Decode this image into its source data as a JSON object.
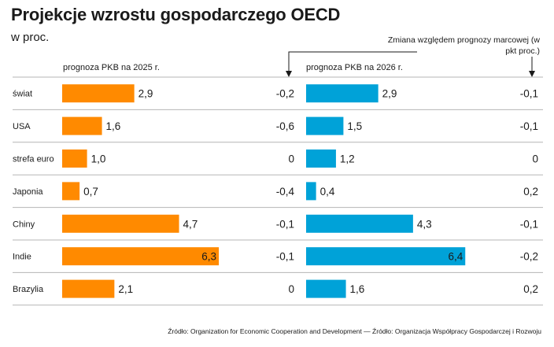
{
  "header": {
    "title": "Projekcje wzrostu gospodarczego OECD",
    "subtitle": "w proc."
  },
  "columns": {
    "left_header": "prognoza PKB na 2025 r.",
    "right_header": "prognoza PKB na 2026 r.",
    "change_note": "Zmiana względem prognozy marcowej (w pkt proc.)"
  },
  "source": "Źródło: Organization for Economic Cooperation and Development — Źródło: Organizacja Współpracy Gospodarczej i Rozwoju",
  "colors": {
    "orange": "#FF8A00",
    "blue": "#00A2D8",
    "divider": "#b5b5b5"
  },
  "chart_data": {
    "type": "bar",
    "categories": [
      "świat",
      "USA",
      "strefa euro",
      "Japonia",
      "Chiny",
      "Indie",
      "Brazylia"
    ],
    "series": [
      {
        "name": "prognoza PKB na 2025 r.",
        "values": [
          2.9,
          1.6,
          1.0,
          0.7,
          4.7,
          6.3,
          2.1
        ],
        "labels": [
          "2,9",
          "1,6",
          "1,0",
          "0,7",
          "4,7",
          "6,3",
          "2,1"
        ],
        "change_labels": [
          "-0,2",
          "-0,6",
          "0",
          "-0,4",
          "-0,1",
          "-0,1",
          "0"
        ]
      },
      {
        "name": "prognoza PKB na 2026 r.",
        "values": [
          2.9,
          1.5,
          1.2,
          0.4,
          4.3,
          6.4,
          1.6
        ],
        "labels": [
          "2,9",
          "1,5",
          "1,2",
          "0,4",
          "4,3",
          "6,4",
          "1,6"
        ],
        "change_labels": [
          "-0,1",
          "-0,1",
          "0",
          "0,2",
          "-0,1",
          "-0,2",
          "0,2"
        ]
      }
    ]
  }
}
